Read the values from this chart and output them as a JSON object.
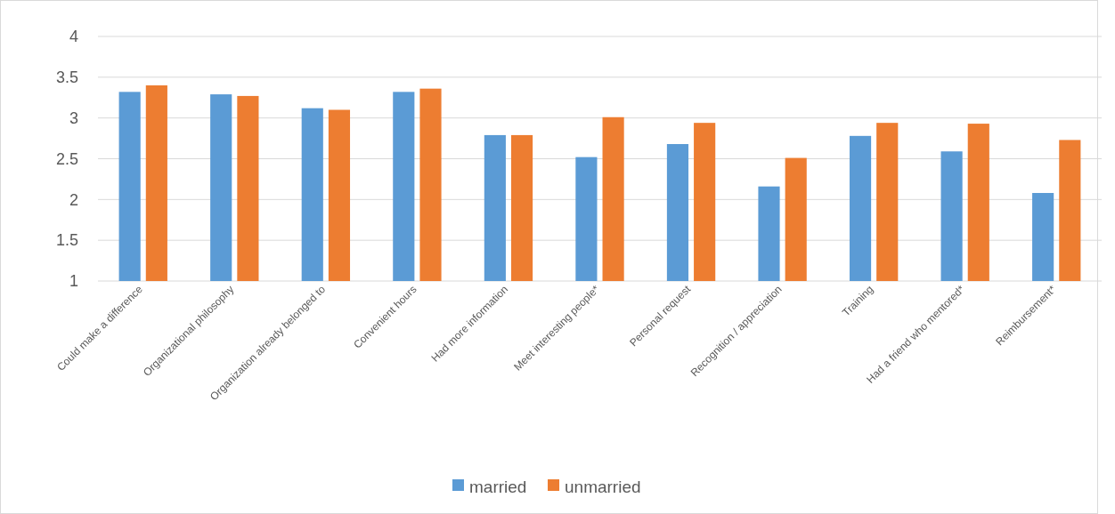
{
  "chart_data": {
    "type": "bar",
    "categories": [
      "Could make a difference",
      "Organizational philosophy",
      "Organization already belonged to",
      "Convenient hours",
      "Had more information",
      "Meet interesting people*",
      "Personal request",
      "Recognition / appreciation",
      "Training",
      "Had a friend who mentored*",
      "Reimbursement*"
    ],
    "series": [
      {
        "name": "married",
        "color": "#5b9bd5",
        "values": [
          3.32,
          3.29,
          3.12,
          3.32,
          2.79,
          2.52,
          2.68,
          2.16,
          2.78,
          2.59,
          2.08
        ]
      },
      {
        "name": "unmarried",
        "color": "#ed7d31",
        "values": [
          3.4,
          3.27,
          3.1,
          3.36,
          2.79,
          3.01,
          2.94,
          2.51,
          2.94,
          2.93,
          2.73
        ]
      }
    ],
    "ylim": [
      1,
      4
    ],
    "yticks": [
      1,
      1.5,
      2,
      2.5,
      3,
      3.5,
      4
    ],
    "grid": "y",
    "legend": "bottom"
  }
}
